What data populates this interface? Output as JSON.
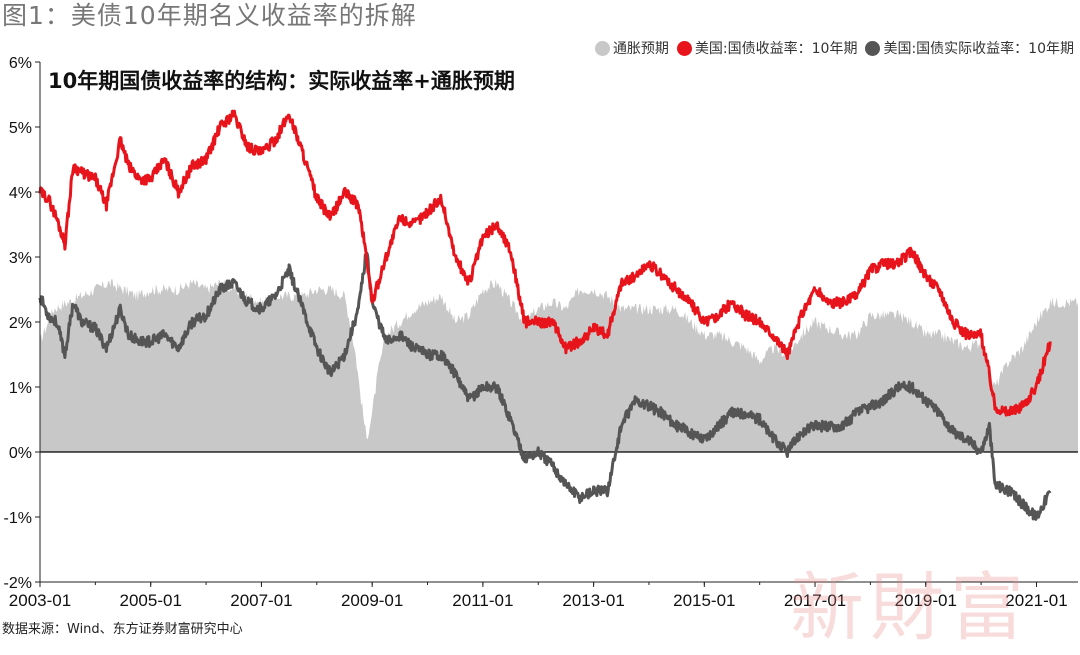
{
  "figure_title": "图1：美债10年期名义收益率的拆解",
  "source_text": "数据来源：Wind、东方证券财富研究中心",
  "watermark_text": "新財富",
  "colors": {
    "inflation": "#c8c8c8",
    "nominal": "#e8141c",
    "real": "#555555",
    "axis": "#222222"
  },
  "chart_data": {
    "type": "line",
    "title": "10年期国债收益率的结构：实际收益率+通胀预期",
    "xlabel": "",
    "ylabel": "",
    "ylim": [
      -2,
      6
    ],
    "xlim": [
      2003.0,
      2021.75
    ],
    "y_ticks": [
      "-2%",
      "-1%",
      "0%",
      "1%",
      "2%",
      "3%",
      "4%",
      "5%",
      "6%"
    ],
    "x_ticks": [
      "2003-01",
      "2005-01",
      "2007-01",
      "2009-01",
      "2011-01",
      "2013-01",
      "2015-01",
      "2017-01",
      "2019-01",
      "2021-01"
    ],
    "legend_position": "top-right",
    "grid": false,
    "series": [
      {
        "name": "通胀预期",
        "kind": "area",
        "x": [
          2003.0,
          2003.25,
          2003.5,
          2003.75,
          2004.0,
          2004.25,
          2004.5,
          2004.75,
          2005.0,
          2005.25,
          2005.5,
          2005.75,
          2006.0,
          2006.25,
          2006.5,
          2006.75,
          2007.0,
          2007.25,
          2007.5,
          2007.75,
          2008.0,
          2008.25,
          2008.5,
          2008.6,
          2008.7,
          2008.8,
          2008.9,
          2009.0,
          2009.1,
          2009.25,
          2009.5,
          2009.75,
          2010.0,
          2010.25,
          2010.5,
          2010.75,
          2011.0,
          2011.25,
          2011.5,
          2011.75,
          2012.0,
          2012.25,
          2012.5,
          2012.75,
          2013.0,
          2013.25,
          2013.5,
          2013.75,
          2014.0,
          2014.25,
          2014.5,
          2014.75,
          2015.0,
          2015.25,
          2015.5,
          2015.75,
          2016.0,
          2016.25,
          2016.5,
          2016.75,
          2017.0,
          2017.25,
          2017.5,
          2017.75,
          2018.0,
          2018.25,
          2018.5,
          2018.75,
          2019.0,
          2019.25,
          2019.5,
          2019.75,
          2020.0,
          2020.15,
          2020.25,
          2020.5,
          2020.75,
          2021.0,
          2021.25,
          2021.5,
          2021.75
        ],
        "values": [
          1.7,
          2.2,
          2.3,
          2.4,
          2.5,
          2.6,
          2.5,
          2.4,
          2.5,
          2.5,
          2.5,
          2.6,
          2.5,
          2.6,
          2.5,
          2.4,
          2.3,
          2.4,
          2.4,
          2.4,
          2.5,
          2.5,
          2.4,
          2.0,
          1.5,
          0.8,
          0.2,
          0.6,
          1.2,
          1.8,
          2.0,
          2.2,
          2.3,
          2.4,
          2.0,
          2.1,
          2.5,
          2.6,
          2.3,
          2.0,
          2.2,
          2.3,
          2.2,
          2.5,
          2.5,
          2.4,
          2.2,
          2.2,
          2.2,
          2.2,
          2.2,
          2.0,
          1.8,
          1.8,
          1.7,
          1.6,
          1.4,
          1.6,
          1.5,
          1.8,
          2.0,
          1.9,
          1.8,
          1.8,
          2.1,
          2.1,
          2.1,
          2.0,
          1.8,
          1.8,
          1.7,
          1.6,
          1.7,
          1.2,
          1.0,
          1.4,
          1.6,
          2.0,
          2.3,
          2.3,
          2.3
        ]
      },
      {
        "name": "美国:国债收益率：10年期",
        "kind": "line",
        "x": [
          2003.0,
          2003.15,
          2003.3,
          2003.45,
          2003.6,
          2003.75,
          2004.0,
          2004.2,
          2004.45,
          2004.6,
          2004.8,
          2005.0,
          2005.25,
          2005.5,
          2005.75,
          2006.0,
          2006.25,
          2006.5,
          2006.75,
          2007.0,
          2007.25,
          2007.5,
          2007.75,
          2008.0,
          2008.25,
          2008.5,
          2008.75,
          2008.9,
          2009.0,
          2009.25,
          2009.5,
          2009.75,
          2010.0,
          2010.25,
          2010.5,
          2010.75,
          2011.0,
          2011.25,
          2011.5,
          2011.75,
          2012.0,
          2012.25,
          2012.5,
          2012.75,
          2013.0,
          2013.25,
          2013.5,
          2013.75,
          2014.0,
          2014.25,
          2014.5,
          2014.75,
          2015.0,
          2015.25,
          2015.5,
          2015.75,
          2016.0,
          2016.25,
          2016.5,
          2016.75,
          2017.0,
          2017.25,
          2017.5,
          2017.75,
          2018.0,
          2018.25,
          2018.5,
          2018.75,
          2019.0,
          2019.25,
          2019.5,
          2019.75,
          2020.0,
          2020.15,
          2020.25,
          2020.5,
          2020.75,
          2021.0,
          2021.25
        ],
        "values": [
          4.0,
          3.9,
          3.6,
          3.2,
          4.4,
          4.3,
          4.2,
          3.8,
          4.8,
          4.4,
          4.2,
          4.2,
          4.5,
          4.0,
          4.4,
          4.5,
          5.0,
          5.2,
          4.7,
          4.6,
          4.8,
          5.2,
          4.6,
          3.9,
          3.6,
          4.0,
          3.8,
          3.0,
          2.3,
          3.0,
          3.6,
          3.5,
          3.7,
          3.9,
          3.0,
          2.6,
          3.3,
          3.5,
          3.1,
          2.0,
          2.0,
          2.0,
          1.6,
          1.7,
          1.9,
          1.8,
          2.6,
          2.7,
          2.9,
          2.7,
          2.5,
          2.3,
          2.0,
          2.1,
          2.3,
          2.1,
          2.0,
          1.8,
          1.5,
          2.1,
          2.5,
          2.3,
          2.3,
          2.4,
          2.8,
          2.9,
          2.9,
          3.1,
          2.7,
          2.5,
          2.0,
          1.8,
          1.8,
          1.2,
          0.7,
          0.6,
          0.7,
          1.0,
          1.7
        ]
      },
      {
        "name": "美国:国债实际收益率：10年期",
        "kind": "line",
        "x": [
          2003.0,
          2003.15,
          2003.3,
          2003.45,
          2003.6,
          2003.75,
          2004.0,
          2004.2,
          2004.45,
          2004.6,
          2004.8,
          2005.0,
          2005.25,
          2005.5,
          2005.75,
          2006.0,
          2006.25,
          2006.5,
          2006.75,
          2007.0,
          2007.25,
          2007.5,
          2007.75,
          2008.0,
          2008.25,
          2008.5,
          2008.75,
          2008.9,
          2009.0,
          2009.25,
          2009.5,
          2009.75,
          2010.0,
          2010.25,
          2010.5,
          2010.75,
          2011.0,
          2011.25,
          2011.5,
          2011.75,
          2012.0,
          2012.25,
          2012.5,
          2012.75,
          2013.0,
          2013.25,
          2013.5,
          2013.75,
          2014.0,
          2014.25,
          2014.5,
          2014.75,
          2015.0,
          2015.25,
          2015.5,
          2015.75,
          2016.0,
          2016.25,
          2016.5,
          2016.75,
          2017.0,
          2017.25,
          2017.5,
          2017.75,
          2018.0,
          2018.25,
          2018.5,
          2018.75,
          2019.0,
          2019.25,
          2019.5,
          2019.75,
          2020.0,
          2020.15,
          2020.25,
          2020.5,
          2020.75,
          2021.0,
          2021.25
        ],
        "values": [
          2.4,
          2.1,
          2.0,
          1.5,
          2.3,
          2.0,
          1.9,
          1.6,
          2.2,
          1.8,
          1.7,
          1.7,
          1.8,
          1.6,
          2.0,
          2.1,
          2.5,
          2.6,
          2.3,
          2.2,
          2.4,
          2.8,
          2.2,
          1.6,
          1.2,
          1.5,
          2.2,
          3.1,
          2.3,
          1.7,
          1.8,
          1.6,
          1.5,
          1.5,
          1.2,
          0.8,
          1.0,
          1.0,
          0.5,
          -0.1,
          0.0,
          -0.2,
          -0.5,
          -0.7,
          -0.6,
          -0.6,
          0.4,
          0.8,
          0.7,
          0.6,
          0.4,
          0.3,
          0.2,
          0.4,
          0.6,
          0.6,
          0.5,
          0.2,
          0.0,
          0.3,
          0.4,
          0.4,
          0.4,
          0.6,
          0.7,
          0.8,
          1.0,
          1.0,
          0.8,
          0.6,
          0.3,
          0.2,
          0.0,
          0.4,
          -0.5,
          -0.6,
          -0.8,
          -1.0,
          -0.6
        ]
      }
    ]
  }
}
